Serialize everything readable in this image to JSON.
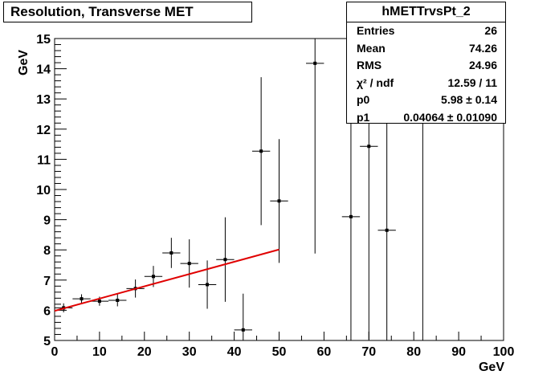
{
  "title": "Resolution, Transverse MET",
  "stats": {
    "name": "hMETTrvsPt_2",
    "rows": [
      {
        "key": "Entries",
        "value": "26"
      },
      {
        "key": "Mean",
        "value": "74.26"
      },
      {
        "key": "RMS",
        "value": "24.96"
      },
      {
        "key": "χ² / ndf",
        "value": "12.59 / 11"
      },
      {
        "key": "p0",
        "value": "5.98 ± 0.14"
      },
      {
        "key": "p1",
        "value": "0.04064 ± 0.01090"
      }
    ]
  },
  "chart_data": {
    "type": "scatter",
    "xlabel": "GeV",
    "ylabel": "GeV",
    "xlim": [
      0,
      100
    ],
    "ylim": [
      5,
      15
    ],
    "xticks": [
      0,
      10,
      20,
      30,
      40,
      50,
      60,
      70,
      80,
      90,
      100
    ],
    "yticks": [
      5,
      6,
      7,
      8,
      9,
      10,
      11,
      12,
      13,
      14,
      15
    ],
    "points": [
      {
        "x": 2,
        "y": 6.08,
        "xerr": 2,
        "yerr": 0.15
      },
      {
        "x": 6,
        "y": 6.38,
        "xerr": 2,
        "yerr": 0.15
      },
      {
        "x": 10,
        "y": 6.3,
        "xerr": 2,
        "yerr": 0.15
      },
      {
        "x": 14,
        "y": 6.33,
        "xerr": 2,
        "yerr": 0.2
      },
      {
        "x": 18,
        "y": 6.72,
        "xerr": 2,
        "yerr": 0.3
      },
      {
        "x": 22,
        "y": 7.12,
        "xerr": 2,
        "yerr": 0.35
      },
      {
        "x": 26,
        "y": 7.9,
        "xerr": 2,
        "yerr": 0.5
      },
      {
        "x": 30,
        "y": 7.55,
        "xerr": 2,
        "yerr": 0.8
      },
      {
        "x": 34,
        "y": 6.85,
        "xerr": 2,
        "yerr": 0.8
      },
      {
        "x": 38,
        "y": 7.68,
        "xerr": 2,
        "yerr": 1.4
      },
      {
        "x": 42,
        "y": 5.35,
        "xerr": 2,
        "yerr": 1.2
      },
      {
        "x": 46,
        "y": 11.27,
        "xerr": 2,
        "yerr": 2.45
      },
      {
        "x": 50,
        "y": 9.62,
        "xerr": 2,
        "yerr": 2.05
      },
      {
        "x": 58,
        "y": 14.18,
        "xerr": 2,
        "yerr": 6.3
      },
      {
        "x": 66,
        "y": 9.1,
        "xerr": 2,
        "yerr": 4.1
      },
      {
        "x": 70,
        "y": 11.43,
        "xerr": 2,
        "yerr": 6.4
      },
      {
        "x": 74,
        "y": 8.65,
        "xerr": 2,
        "yerr": 3.65
      },
      {
        "x": 82,
        "y": 15.5,
        "xerr": 0,
        "yerr": 10.5
      }
    ],
    "fit": {
      "p0": 5.98,
      "p1": 0.04064,
      "xmin": 0,
      "xmax": 50,
      "color": "#e00000"
    }
  }
}
